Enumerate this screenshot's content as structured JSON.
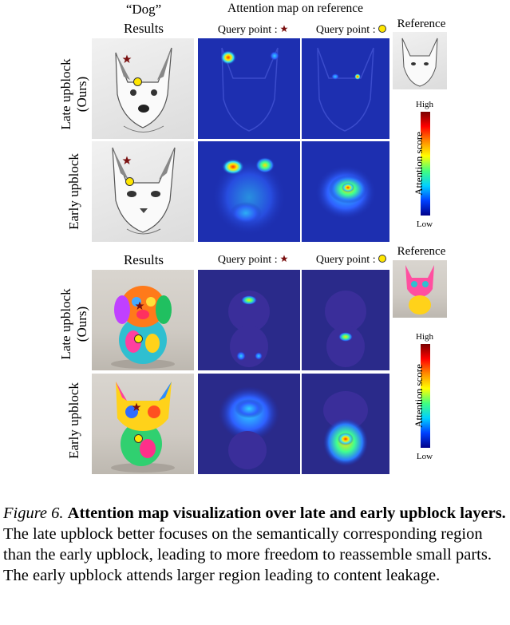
{
  "header": {
    "dog_label": "“Dog”",
    "results_top": "Results",
    "attention_title": "Attention map on reference",
    "query_star_label": "Query point :",
    "query_dot_label": "Query point :",
    "reference_label": "Reference",
    "results_bottom": "Results",
    "reference_label_bottom": "Reference"
  },
  "rows": {
    "late": "Late upblock (Ours)",
    "early": "Early upblock",
    "late_bottom": "Late upblock (Ours)",
    "early_bottom": "Early upblock"
  },
  "colorbar": {
    "high": "High",
    "low": "Low",
    "title": "Attention score"
  },
  "caption": {
    "figure_label": "Figure 6.",
    "bold_text": "Attention map visualization over late and early upblock layers.",
    "body_text": "The late upblock better focuses on the semantically corresponding region than the early upblock, leading to more freedom to reassemble small parts. The early upblock attends larger region leading to content leakage."
  },
  "colors": {
    "star": "#7a1010",
    "dot": "#ffe600",
    "attention_bg": "#1d2fb0"
  }
}
